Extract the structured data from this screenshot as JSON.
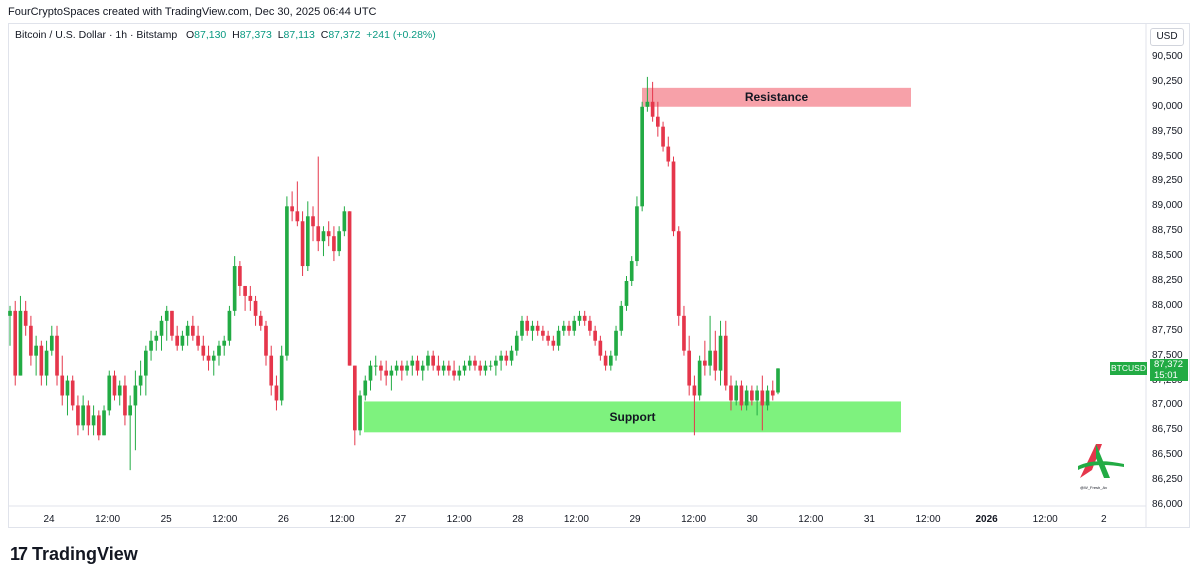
{
  "header": {
    "attribution": "FourCryptoSpaces created with TradingView.com, Dec 30, 2025 06:44 UTC"
  },
  "legend": {
    "symbol": "Bitcoin / U.S. Dollar · 1h · Bitstamp",
    "o_label": "O",
    "o_value": "87,130",
    "h_label": "H",
    "h_value": "87,373",
    "l_label": "L",
    "l_value": "87,113",
    "c_label": "C",
    "c_value": "87,372",
    "change": "+241 (+0.28%)"
  },
  "currency_button": "USD",
  "price_axis": {
    "ticks": [
      "90,500",
      "90,250",
      "90,000",
      "89,750",
      "89,500",
      "89,250",
      "89,000",
      "88,750",
      "88,500",
      "88,250",
      "88,000",
      "87,750",
      "87,500",
      "87,250",
      "87,000",
      "86,750",
      "86,500",
      "86,250",
      "86,000"
    ]
  },
  "time_axis": {
    "ticks": [
      {
        "label": "24",
        "bold": false
      },
      {
        "label": "12:00",
        "bold": false
      },
      {
        "label": "25",
        "bold": false
      },
      {
        "label": "12:00",
        "bold": false
      },
      {
        "label": "26",
        "bold": false
      },
      {
        "label": "12:00",
        "bold": false
      },
      {
        "label": "27",
        "bold": false
      },
      {
        "label": "12:00",
        "bold": false
      },
      {
        "label": "28",
        "bold": false
      },
      {
        "label": "12:00",
        "bold": false
      },
      {
        "label": "29",
        "bold": false
      },
      {
        "label": "12:00",
        "bold": false
      },
      {
        "label": "30",
        "bold": false
      },
      {
        "label": "12:00",
        "bold": false
      },
      {
        "label": "31",
        "bold": false
      },
      {
        "label": "12:00",
        "bold": false
      },
      {
        "label": "2026",
        "bold": true
      },
      {
        "label": "12:00",
        "bold": false
      },
      {
        "label": "2",
        "bold": false
      }
    ]
  },
  "last_price": {
    "symbol": "BTCUSD",
    "price": "87,372",
    "countdown": "15:01"
  },
  "zones": {
    "resistance": {
      "label": "Resistance",
      "from": 90000,
      "to": 90190,
      "color": "#f7a1a9"
    },
    "support": {
      "label": "Support",
      "from": 86730,
      "to": 87040,
      "color": "#7ef27e"
    }
  },
  "colors": {
    "up": "#22ab44",
    "down": "#e5364b",
    "grid": "#f0f3fa"
  },
  "brand": {
    "logo": "17",
    "name": "TradingView"
  },
  "watermark_text": "@W_Fresh_Av",
  "chart_data": {
    "type": "candlestick",
    "ylim": [
      86000,
      90550
    ],
    "y_ticks": [
      86000,
      86250,
      86500,
      86750,
      87000,
      87250,
      87500,
      87750,
      88000,
      88250,
      88500,
      88750,
      89000,
      89250,
      89500,
      89750,
      90000,
      90250,
      90500
    ],
    "bar_interval": "1h",
    "first_bar": "Dec 23 ~22:00",
    "ohlc": [
      [
        87900,
        88000,
        87600,
        87950
      ],
      [
        87950,
        88050,
        87200,
        87300
      ],
      [
        87300,
        88100,
        87300,
        87950
      ],
      [
        87950,
        88050,
        87700,
        87800
      ],
      [
        87800,
        87900,
        87400,
        87500
      ],
      [
        87500,
        87700,
        87300,
        87600
      ],
      [
        87600,
        87650,
        87200,
        87300
      ],
      [
        87300,
        87650,
        87200,
        87550
      ],
      [
        87550,
        87800,
        87500,
        87700
      ],
      [
        87700,
        87800,
        87200,
        87300
      ],
      [
        87300,
        87500,
        87000,
        87100
      ],
      [
        87100,
        87300,
        86900,
        87250
      ],
      [
        87250,
        87300,
        86950,
        87000
      ],
      [
        87000,
        87100,
        86700,
        86800
      ],
      [
        86800,
        87100,
        86750,
        87000
      ],
      [
        87000,
        87050,
        86700,
        86800
      ],
      [
        86800,
        87000,
        86700,
        86900
      ],
      [
        86900,
        86950,
        86650,
        86700
      ],
      [
        86700,
        87000,
        86700,
        86950
      ],
      [
        86950,
        87350,
        86900,
        87300
      ],
      [
        87300,
        87350,
        87050,
        87100
      ],
      [
        87100,
        87250,
        87000,
        87200
      ],
      [
        87200,
        87300,
        86800,
        86900
      ],
      [
        86900,
        87100,
        86350,
        87000
      ],
      [
        87000,
        87350,
        86550,
        87200
      ],
      [
        87200,
        87450,
        87100,
        87300
      ],
      [
        87300,
        87600,
        87100,
        87550
      ],
      [
        87550,
        87750,
        87450,
        87650
      ],
      [
        87650,
        87750,
        87550,
        87700
      ],
      [
        87700,
        87900,
        87550,
        87850
      ],
      [
        87850,
        88000,
        87650,
        87950
      ],
      [
        87950,
        87950,
        87650,
        87700
      ],
      [
        87700,
        87800,
        87550,
        87600
      ],
      [
        87600,
        87750,
        87550,
        87700
      ],
      [
        87700,
        87850,
        87600,
        87800
      ],
      [
        87800,
        87900,
        87650,
        87700
      ],
      [
        87700,
        87800,
        87550,
        87600
      ],
      [
        87600,
        87700,
        87450,
        87500
      ],
      [
        87500,
        87600,
        87350,
        87450
      ],
      [
        87450,
        87550,
        87300,
        87500
      ],
      [
        87500,
        87650,
        87400,
        87600
      ],
      [
        87600,
        87700,
        87500,
        87650
      ],
      [
        87650,
        88000,
        87600,
        87950
      ],
      [
        87950,
        88500,
        87900,
        88400
      ],
      [
        88400,
        88450,
        88100,
        88200
      ],
      [
        88200,
        88200,
        87950,
        88100
      ],
      [
        88100,
        88200,
        87950,
        88050
      ],
      [
        88050,
        88100,
        87800,
        87900
      ],
      [
        87900,
        87950,
        87750,
        87800
      ],
      [
        87800,
        87850,
        87400,
        87500
      ],
      [
        87500,
        87600,
        87100,
        87200
      ],
      [
        87200,
        87300,
        86950,
        87050
      ],
      [
        87050,
        87600,
        87000,
        87500
      ],
      [
        87500,
        89100,
        87450,
        89000
      ],
      [
        89000,
        89150,
        88850,
        88950
      ],
      [
        88950,
        89250,
        88800,
        88850
      ],
      [
        88850,
        88950,
        88300,
        88400
      ],
      [
        88400,
        89050,
        88350,
        88900
      ],
      [
        88900,
        89000,
        88650,
        88800
      ],
      [
        88800,
        89500,
        88550,
        88650
      ],
      [
        88650,
        88800,
        88500,
        88750
      ],
      [
        88750,
        88850,
        88600,
        88700
      ],
      [
        88700,
        88800,
        88450,
        88550
      ],
      [
        88550,
        88800,
        88500,
        88750
      ],
      [
        88750,
        89000,
        88700,
        88950
      ],
      [
        88950,
        88950,
        87400,
        87400
      ],
      [
        87400,
        87400,
        86600,
        86750
      ],
      [
        86750,
        87150,
        86700,
        87100
      ],
      [
        87100,
        87300,
        87050,
        87250
      ],
      [
        87250,
        87450,
        87150,
        87400
      ],
      [
        87400,
        87500,
        87300,
        87400
      ],
      [
        87400,
        87450,
        87250,
        87350
      ],
      [
        87350,
        87450,
        87200,
        87300
      ],
      [
        87300,
        87400,
        87150,
        87350
      ],
      [
        87350,
        87450,
        87300,
        87400
      ],
      [
        87400,
        87450,
        87250,
        87350
      ],
      [
        87350,
        87450,
        87300,
        87400
      ],
      [
        87400,
        87500,
        87300,
        87450
      ],
      [
        87450,
        87500,
        87300,
        87350
      ],
      [
        87350,
        87450,
        87250,
        87400
      ],
      [
        87400,
        87550,
        87350,
        87500
      ],
      [
        87500,
        87550,
        87350,
        87400
      ],
      [
        87400,
        87500,
        87300,
        87350
      ],
      [
        87350,
        87450,
        87300,
        87400
      ],
      [
        87400,
        87450,
        87300,
        87350
      ],
      [
        87350,
        87450,
        87250,
        87300
      ],
      [
        87300,
        87400,
        87250,
        87350
      ],
      [
        87350,
        87450,
        87300,
        87400
      ],
      [
        87400,
        87500,
        87350,
        87450
      ],
      [
        87450,
        87500,
        87350,
        87400
      ],
      [
        87400,
        87450,
        87300,
        87350
      ],
      [
        87350,
        87450,
        87300,
        87400
      ],
      [
        87400,
        87450,
        87350,
        87400
      ],
      [
        87400,
        87500,
        87300,
        87450
      ],
      [
        87450,
        87550,
        87350,
        87500
      ],
      [
        87500,
        87550,
        87400,
        87450
      ],
      [
        87450,
        87600,
        87400,
        87550
      ],
      [
        87550,
        87750,
        87500,
        87700
      ],
      [
        87700,
        87900,
        87650,
        87850
      ],
      [
        87850,
        87900,
        87700,
        87750
      ],
      [
        87750,
        87850,
        87650,
        87800
      ],
      [
        87800,
        87850,
        87700,
        87750
      ],
      [
        87750,
        87800,
        87650,
        87700
      ],
      [
        87700,
        87750,
        87600,
        87650
      ],
      [
        87650,
        87700,
        87550,
        87600
      ],
      [
        87600,
        87800,
        87550,
        87750
      ],
      [
        87750,
        87850,
        87700,
        87800
      ],
      [
        87800,
        87850,
        87700,
        87750
      ],
      [
        87750,
        87900,
        87700,
        87850
      ],
      [
        87850,
        87950,
        87800,
        87900
      ],
      [
        87900,
        87950,
        87800,
        87850
      ],
      [
        87850,
        87900,
        87700,
        87750
      ],
      [
        87750,
        87800,
        87600,
        87650
      ],
      [
        87650,
        87700,
        87450,
        87500
      ],
      [
        87500,
        87550,
        87350,
        87400
      ],
      [
        87400,
        87550,
        87350,
        87500
      ],
      [
        87500,
        87800,
        87450,
        87750
      ],
      [
        87750,
        88050,
        87700,
        88000
      ],
      [
        88000,
        88300,
        87950,
        88250
      ],
      [
        88250,
        88500,
        88200,
        88450
      ],
      [
        88450,
        89100,
        88400,
        89000
      ],
      [
        89000,
        90050,
        88950,
        90000
      ],
      [
        90000,
        90300,
        89950,
        90050
      ],
      [
        90050,
        90250,
        89850,
        89900
      ],
      [
        89900,
        90050,
        89700,
        89800
      ],
      [
        89800,
        89850,
        89550,
        89600
      ],
      [
        89600,
        89700,
        89400,
        89450
      ],
      [
        89450,
        89500,
        88700,
        88750
      ],
      [
        88750,
        88800,
        87800,
        87900
      ],
      [
        87900,
        88000,
        87500,
        87550
      ],
      [
        87550,
        87700,
        87100,
        87200
      ],
      [
        87200,
        87300,
        86700,
        87100
      ],
      [
        87100,
        87500,
        87050,
        87450
      ],
      [
        87450,
        87650,
        87300,
        87400
      ],
      [
        87400,
        87900,
        87300,
        87550
      ],
      [
        87550,
        87750,
        87250,
        87350
      ],
      [
        87350,
        87850,
        87200,
        87700
      ],
      [
        87700,
        87850,
        87150,
        87200
      ],
      [
        87200,
        87300,
        86950,
        87050
      ],
      [
        87050,
        87250,
        87000,
        87200
      ],
      [
        87200,
        87250,
        86950,
        87000
      ],
      [
        87000,
        87200,
        86950,
        87150
      ],
      [
        87150,
        87200,
        87000,
        87050
      ],
      [
        87050,
        87200,
        86900,
        87150
      ],
      [
        87150,
        87300,
        86750,
        87000
      ],
      [
        87000,
        87200,
        86950,
        87150
      ],
      [
        87150,
        87250,
        87050,
        87100
      ],
      [
        87130,
        87373,
        87113,
        87372
      ]
    ]
  }
}
